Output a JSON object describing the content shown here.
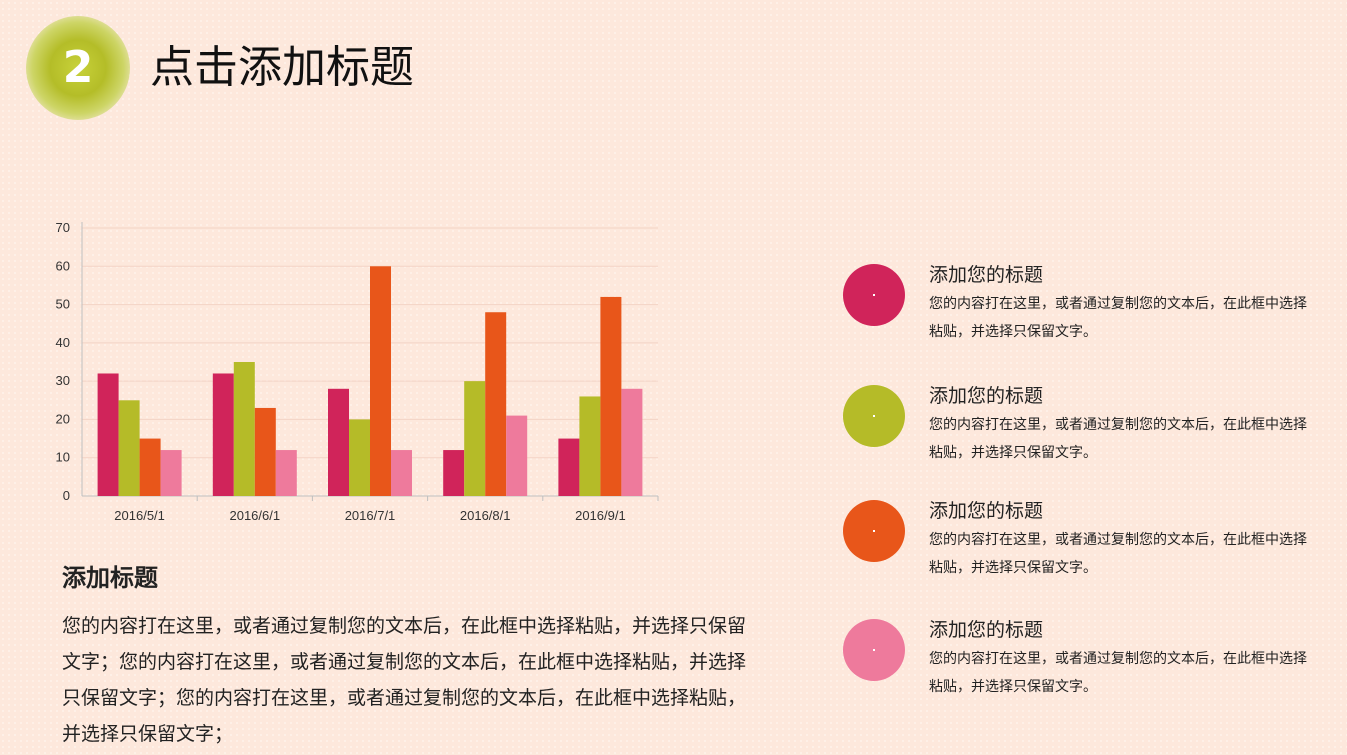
{
  "header": {
    "badge_number": "2",
    "title": "点击添加标题"
  },
  "chart_data": {
    "type": "bar",
    "categories": [
      "2016/5/1",
      "2016/6/1",
      "2016/7/1",
      "2016/8/1",
      "2016/9/1"
    ],
    "series": [
      {
        "color": "#d0245a",
        "values": [
          32,
          32,
          28,
          12,
          15
        ]
      },
      {
        "color": "#b5bb28",
        "values": [
          25,
          35,
          20,
          30,
          26
        ]
      },
      {
        "color": "#e8561a",
        "values": [
          15,
          23,
          60,
          48,
          52
        ]
      },
      {
        "color": "#ee7a9c",
        "values": [
          12,
          12,
          12,
          21,
          28
        ]
      }
    ],
    "ylim": [
      0,
      70
    ],
    "yticks": [
      "0",
      "10",
      "20",
      "30",
      "40",
      "50",
      "60",
      "70"
    ],
    "grid": true,
    "title": "",
    "xlabel": "",
    "ylabel": ""
  },
  "section": {
    "title": "添加标题",
    "body": "您的内容打在这里，或者通过复制您的文本后，在此框中选择粘贴，并选择只保留文字；您的内容打在这里，或者通过复制您的文本后，在此框中选择粘贴，并选择只保留文字；您的内容打在这里，或者通过复制您的文本后，在此框中选择粘贴，并选择只保留文字；"
  },
  "items": [
    {
      "color": "#d0245a",
      "title": "添加您的标题",
      "desc": "您的内容打在这里，或者通过复制您的文本后，在此框中选择粘贴，并选择只保留文字。"
    },
    {
      "color": "#b5bb28",
      "title": "添加您的标题",
      "desc": "您的内容打在这里，或者通过复制您的文本后，在此框中选择粘贴，并选择只保留文字。"
    },
    {
      "color": "#e8561a",
      "title": "添加您的标题",
      "desc": "您的内容打在这里，或者通过复制您的文本后，在此框中选择粘贴，并选择只保留文字。"
    },
    {
      "color": "#ee7a9c",
      "title": "添加您的标题",
      "desc": "您的内容打在这里，或者通过复制您的文本后，在此框中选择粘贴，并选择只保留文字。"
    }
  ]
}
